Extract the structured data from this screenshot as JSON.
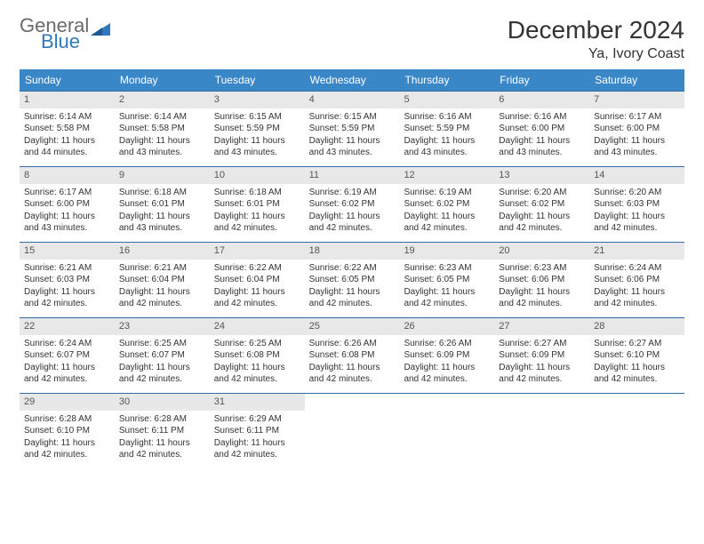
{
  "logo": {
    "general": "General",
    "blue": "Blue"
  },
  "title": "December 2024",
  "subtitle": "Ya, Ivory Coast",
  "colors": {
    "header_bg": "#3a87c8",
    "week_border": "#2f6ea6",
    "daynum_bg": "#e8e8e8",
    "text": "#333333",
    "logo_gray": "#6a6a6a",
    "logo_blue": "#2f78bd"
  },
  "day_headers": [
    "Sunday",
    "Monday",
    "Tuesday",
    "Wednesday",
    "Thursday",
    "Friday",
    "Saturday"
  ],
  "weeks": [
    [
      {
        "n": "1",
        "sr": "Sunrise: 6:14 AM",
        "ss": "Sunset: 5:58 PM",
        "d1": "Daylight: 11 hours",
        "d2": "and 44 minutes."
      },
      {
        "n": "2",
        "sr": "Sunrise: 6:14 AM",
        "ss": "Sunset: 5:58 PM",
        "d1": "Daylight: 11 hours",
        "d2": "and 43 minutes."
      },
      {
        "n": "3",
        "sr": "Sunrise: 6:15 AM",
        "ss": "Sunset: 5:59 PM",
        "d1": "Daylight: 11 hours",
        "d2": "and 43 minutes."
      },
      {
        "n": "4",
        "sr": "Sunrise: 6:15 AM",
        "ss": "Sunset: 5:59 PM",
        "d1": "Daylight: 11 hours",
        "d2": "and 43 minutes."
      },
      {
        "n": "5",
        "sr": "Sunrise: 6:16 AM",
        "ss": "Sunset: 5:59 PM",
        "d1": "Daylight: 11 hours",
        "d2": "and 43 minutes."
      },
      {
        "n": "6",
        "sr": "Sunrise: 6:16 AM",
        "ss": "Sunset: 6:00 PM",
        "d1": "Daylight: 11 hours",
        "d2": "and 43 minutes."
      },
      {
        "n": "7",
        "sr": "Sunrise: 6:17 AM",
        "ss": "Sunset: 6:00 PM",
        "d1": "Daylight: 11 hours",
        "d2": "and 43 minutes."
      }
    ],
    [
      {
        "n": "8",
        "sr": "Sunrise: 6:17 AM",
        "ss": "Sunset: 6:00 PM",
        "d1": "Daylight: 11 hours",
        "d2": "and 43 minutes."
      },
      {
        "n": "9",
        "sr": "Sunrise: 6:18 AM",
        "ss": "Sunset: 6:01 PM",
        "d1": "Daylight: 11 hours",
        "d2": "and 43 minutes."
      },
      {
        "n": "10",
        "sr": "Sunrise: 6:18 AM",
        "ss": "Sunset: 6:01 PM",
        "d1": "Daylight: 11 hours",
        "d2": "and 42 minutes."
      },
      {
        "n": "11",
        "sr": "Sunrise: 6:19 AM",
        "ss": "Sunset: 6:02 PM",
        "d1": "Daylight: 11 hours",
        "d2": "and 42 minutes."
      },
      {
        "n": "12",
        "sr": "Sunrise: 6:19 AM",
        "ss": "Sunset: 6:02 PM",
        "d1": "Daylight: 11 hours",
        "d2": "and 42 minutes."
      },
      {
        "n": "13",
        "sr": "Sunrise: 6:20 AM",
        "ss": "Sunset: 6:02 PM",
        "d1": "Daylight: 11 hours",
        "d2": "and 42 minutes."
      },
      {
        "n": "14",
        "sr": "Sunrise: 6:20 AM",
        "ss": "Sunset: 6:03 PM",
        "d1": "Daylight: 11 hours",
        "d2": "and 42 minutes."
      }
    ],
    [
      {
        "n": "15",
        "sr": "Sunrise: 6:21 AM",
        "ss": "Sunset: 6:03 PM",
        "d1": "Daylight: 11 hours",
        "d2": "and 42 minutes."
      },
      {
        "n": "16",
        "sr": "Sunrise: 6:21 AM",
        "ss": "Sunset: 6:04 PM",
        "d1": "Daylight: 11 hours",
        "d2": "and 42 minutes."
      },
      {
        "n": "17",
        "sr": "Sunrise: 6:22 AM",
        "ss": "Sunset: 6:04 PM",
        "d1": "Daylight: 11 hours",
        "d2": "and 42 minutes."
      },
      {
        "n": "18",
        "sr": "Sunrise: 6:22 AM",
        "ss": "Sunset: 6:05 PM",
        "d1": "Daylight: 11 hours",
        "d2": "and 42 minutes."
      },
      {
        "n": "19",
        "sr": "Sunrise: 6:23 AM",
        "ss": "Sunset: 6:05 PM",
        "d1": "Daylight: 11 hours",
        "d2": "and 42 minutes."
      },
      {
        "n": "20",
        "sr": "Sunrise: 6:23 AM",
        "ss": "Sunset: 6:06 PM",
        "d1": "Daylight: 11 hours",
        "d2": "and 42 minutes."
      },
      {
        "n": "21",
        "sr": "Sunrise: 6:24 AM",
        "ss": "Sunset: 6:06 PM",
        "d1": "Daylight: 11 hours",
        "d2": "and 42 minutes."
      }
    ],
    [
      {
        "n": "22",
        "sr": "Sunrise: 6:24 AM",
        "ss": "Sunset: 6:07 PM",
        "d1": "Daylight: 11 hours",
        "d2": "and 42 minutes."
      },
      {
        "n": "23",
        "sr": "Sunrise: 6:25 AM",
        "ss": "Sunset: 6:07 PM",
        "d1": "Daylight: 11 hours",
        "d2": "and 42 minutes."
      },
      {
        "n": "24",
        "sr": "Sunrise: 6:25 AM",
        "ss": "Sunset: 6:08 PM",
        "d1": "Daylight: 11 hours",
        "d2": "and 42 minutes."
      },
      {
        "n": "25",
        "sr": "Sunrise: 6:26 AM",
        "ss": "Sunset: 6:08 PM",
        "d1": "Daylight: 11 hours",
        "d2": "and 42 minutes."
      },
      {
        "n": "26",
        "sr": "Sunrise: 6:26 AM",
        "ss": "Sunset: 6:09 PM",
        "d1": "Daylight: 11 hours",
        "d2": "and 42 minutes."
      },
      {
        "n": "27",
        "sr": "Sunrise: 6:27 AM",
        "ss": "Sunset: 6:09 PM",
        "d1": "Daylight: 11 hours",
        "d2": "and 42 minutes."
      },
      {
        "n": "28",
        "sr": "Sunrise: 6:27 AM",
        "ss": "Sunset: 6:10 PM",
        "d1": "Daylight: 11 hours",
        "d2": "and 42 minutes."
      }
    ],
    [
      {
        "n": "29",
        "sr": "Sunrise: 6:28 AM",
        "ss": "Sunset: 6:10 PM",
        "d1": "Daylight: 11 hours",
        "d2": "and 42 minutes."
      },
      {
        "n": "30",
        "sr": "Sunrise: 6:28 AM",
        "ss": "Sunset: 6:11 PM",
        "d1": "Daylight: 11 hours",
        "d2": "and 42 minutes."
      },
      {
        "n": "31",
        "sr": "Sunrise: 6:29 AM",
        "ss": "Sunset: 6:11 PM",
        "d1": "Daylight: 11 hours",
        "d2": "and 42 minutes."
      },
      {
        "empty": true
      },
      {
        "empty": true
      },
      {
        "empty": true
      },
      {
        "empty": true
      }
    ]
  ]
}
